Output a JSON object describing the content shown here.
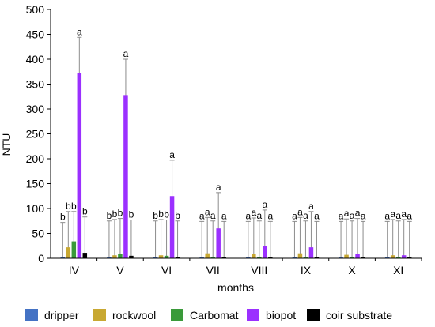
{
  "chart_data": {
    "type": "bar",
    "title": "",
    "xlabel": "months",
    "ylabel": "NTU",
    "ylim": [
      0,
      500
    ],
    "yticks": [
      0,
      50,
      100,
      150,
      200,
      250,
      300,
      350,
      400,
      450,
      500
    ],
    "categories": [
      "IV",
      "V",
      "VI",
      "VII",
      "VIII",
      "IX",
      "X",
      "XI"
    ],
    "legend_position": "bottom",
    "series": [
      {
        "name": "dripper",
        "color": "#4472c4",
        "values": [
          2,
          3,
          3,
          2,
          2,
          2,
          2,
          2
        ],
        "errors": [
          70,
          72,
          72,
          72,
          72,
          72,
          72,
          72
        ],
        "sig": [
          "b",
          "b",
          "b",
          "a",
          "a",
          "a",
          "a",
          "a"
        ]
      },
      {
        "name": "rockwool",
        "color": "#c8a832",
        "values": [
          22,
          6,
          6,
          10,
          9,
          10,
          7,
          6
        ],
        "errors": [
          72,
          72,
          72,
          72,
          72,
          72,
          72,
          72
        ],
        "sig": [
          "b",
          "b",
          "b",
          "a",
          "a",
          "a",
          "a",
          "a"
        ]
      },
      {
        "name": "Carbomat",
        "color": "#3a9a3a",
        "values": [
          34,
          8,
          5,
          3,
          3,
          3,
          3,
          3
        ],
        "errors": [
          60,
          72,
          72,
          72,
          72,
          72,
          72,
          72
        ],
        "sig": [
          "b",
          "b",
          "b",
          "a",
          "a",
          "a",
          "a",
          "a"
        ]
      },
      {
        "name": "biopot",
        "color": "#9b30ff",
        "values": [
          372,
          328,
          125,
          60,
          25,
          22,
          8,
          6
        ],
        "errors": [
          72,
          72,
          72,
          72,
          72,
          72,
          72,
          72
        ],
        "sig": [
          "a",
          "a",
          "a",
          "a",
          "a",
          "a",
          "a",
          "a"
        ]
      },
      {
        "name": "coir substrate",
        "color": "#000000",
        "values": [
          11,
          5,
          3,
          2,
          2,
          2,
          2,
          2
        ],
        "errors": [
          72,
          72,
          72,
          72,
          72,
          72,
          72,
          72
        ],
        "sig": [
          "b",
          "b",
          "b",
          "a",
          "a",
          "a",
          "a",
          "a"
        ]
      }
    ]
  }
}
